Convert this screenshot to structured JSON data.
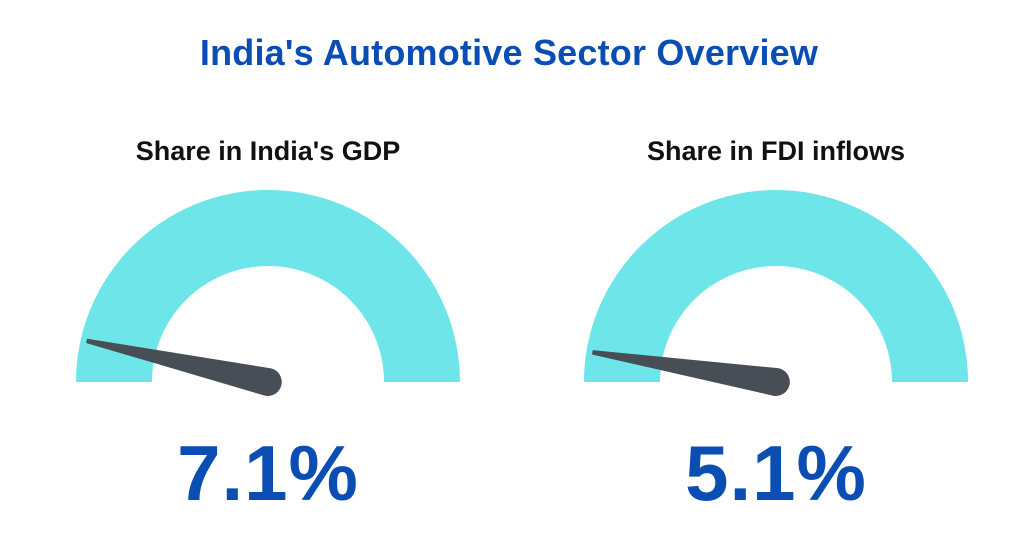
{
  "title": "India's Automotive Sector Overview",
  "colors": {
    "title": "#0a4db3",
    "gauge_arc": "#6de5e9",
    "needle": "#474e56",
    "value": "#0a4db3",
    "label": "#111111"
  },
  "chart_data": [
    {
      "type": "gauge",
      "title": "Share in India's GDP",
      "value": 7.1,
      "value_label": "7.1%",
      "unit": "%",
      "range": [
        0,
        100
      ]
    },
    {
      "type": "gauge",
      "title": "Share in FDI inflows",
      "value": 5.1,
      "value_label": "5.1%",
      "unit": "%",
      "range": [
        0,
        100
      ]
    }
  ]
}
